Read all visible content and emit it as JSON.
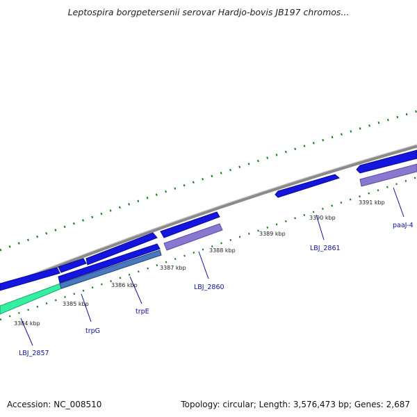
{
  "title": "Leptospira borgpetersenii serovar Hardjo-bovis JB197 chromos...",
  "footer": {
    "accession": "Accession: NC_008510",
    "stats": "Topology: circular; Length: 3,576,473 bp; Genes: 2,687"
  },
  "scale_labels": [
    "3384 kbp",
    "3385 kbp",
    "3386 kbp",
    "3387 kbp",
    "3388 kbp",
    "3389 kbp",
    "3390 kbp",
    "3391 kbp"
  ],
  "gene_labels": [
    "LBJ_2857",
    "trpG",
    "trpE",
    "LBJ_2860",
    "LBJ_2861",
    "paaJ-4"
  ],
  "colors": {
    "forward_gene": "#1515e0",
    "reverse_gene": "#8878d0",
    "highlight_gene": "#33f0a0",
    "backbone": "#8a8a8a",
    "gc_ticks": "#1b7a1b",
    "label": "#1010a0"
  }
}
